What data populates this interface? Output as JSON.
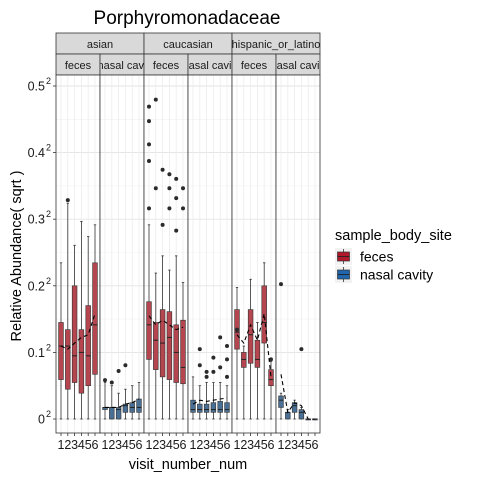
{
  "chart_data": {
    "type": "boxplot",
    "title": "Porphyromonadaceae",
    "xlabel": "visit_number_num",
    "ylabel": "Relative Abundance( sqrt )",
    "y_scale": "sqrt",
    "ylim": [
      0,
      0.27
    ],
    "y_ticks": [
      {
        "value": 0,
        "base": "0",
        "exp": "2"
      },
      {
        "value": 0.01,
        "base": "0.1",
        "exp": "2"
      },
      {
        "value": 0.04,
        "base": "0.2",
        "exp": "2"
      },
      {
        "value": 0.09,
        "base": "0.3",
        "exp": "2"
      },
      {
        "value": 0.16,
        "base": "0.4",
        "exp": "2"
      },
      {
        "value": 0.25,
        "base": "0.5",
        "exp": "2"
      }
    ],
    "x_categories": [
      "1",
      "2",
      "3",
      "4",
      "5",
      "6"
    ],
    "grid": true,
    "legend": {
      "title": "sample_body_site",
      "placement": "right",
      "entries": [
        {
          "label": "feces",
          "color": "#b2182b"
        },
        {
          "label": "nasal cavity",
          "color": "#2166ac"
        }
      ]
    },
    "facet_rows": [
      "asian",
      "caucasian",
      "hispanic_or_latino"
    ],
    "facet_row_labels": [
      "asian",
      "caucasian",
      "hispanic_or_latino"
    ],
    "facet_cols": [
      "feces",
      "nasal cavity"
    ],
    "facet_col_labels": [
      "feces",
      "nasal cavi",
      "feces",
      "asal cavi",
      "feces",
      "asal cavi"
    ],
    "panels": [
      {
        "ethnicity": "asian",
        "site": "feces",
        "boxes": [
          {
            "x": 1,
            "min": 0.0,
            "q1": 0.0035,
            "median": 0.012,
            "q3": 0.021,
            "max": 0.055
          },
          {
            "x": 2,
            "min": 0.0,
            "q1": 0.002,
            "median": 0.012,
            "q3": 0.018,
            "max": 0.105
          },
          {
            "x": 3,
            "min": 0.0,
            "q1": 0.003,
            "median": 0.009,
            "q3": 0.04,
            "max": 0.068
          },
          {
            "x": 4,
            "min": 0.0,
            "q1": 0.0015,
            "median": 0.01,
            "q3": 0.018,
            "max": 0.088
          },
          {
            "x": 5,
            "min": 0.0,
            "q1": 0.0025,
            "median": 0.009,
            "q3": 0.029,
            "max": 0.075
          },
          {
            "x": 6,
            "min": 0.0,
            "q1": 0.0045,
            "median": 0.02,
            "q3": 0.055,
            "max": 0.085
          }
        ],
        "outliers": [
          [
            2,
            0.108
          ]
        ],
        "mean_line": [
          0.012,
          0.011,
          0.013,
          0.015,
          0.016,
          0.025
        ]
      },
      {
        "ethnicity": "asian",
        "site": "nasal cavity",
        "boxes": [
          {
            "x": 1,
            "min": 0.0,
            "q1": 0.0002,
            "median": 0.0003,
            "q3": 0.0003,
            "max": 0.003
          },
          {
            "x": 2,
            "min": 0.0,
            "q1": 0.0,
            "median": 0.0003,
            "q3": 0.0003,
            "max": 0.0025
          },
          {
            "x": 3,
            "min": 0.0,
            "q1": 0.0,
            "median": 0.0002,
            "q3": 0.0003,
            "max": 0.0015
          },
          {
            "x": 4,
            "min": 0.0,
            "q1": 0.0001,
            "median": 0.0004,
            "q3": 0.0005,
            "max": 0.002
          },
          {
            "x": 5,
            "min": 0.0,
            "q1": 0.0001,
            "median": 0.0003,
            "q3": 0.0006,
            "max": 0.0025
          },
          {
            "x": 6,
            "min": 0.0,
            "q1": 0.0001,
            "median": 0.0003,
            "q3": 0.0009,
            "max": 0.003
          }
        ],
        "outliers": [
          [
            1,
            0.0034
          ],
          [
            2,
            0.003
          ],
          [
            3,
            0.0052
          ],
          [
            4,
            0.0065
          ]
        ],
        "mean_line": [
          0.0003,
          0.0003,
          0.0003,
          0.0005,
          0.0006,
          0.0009
        ]
      },
      {
        "ethnicity": "caucasian",
        "site": "feces",
        "boxes": [
          {
            "x": 1,
            "min": 0.0,
            "q1": 0.008,
            "median": 0.02,
            "q3": 0.031,
            "max": 0.085
          },
          {
            "x": 2,
            "min": 0.0,
            "q1": 0.0055,
            "median": 0.014,
            "q3": 0.021,
            "max": 0.048
          },
          {
            "x": 3,
            "min": 0.0,
            "q1": 0.004,
            "median": 0.013,
            "q3": 0.027,
            "max": 0.06
          },
          {
            "x": 4,
            "min": 0.0,
            "q1": 0.0035,
            "median": 0.015,
            "q3": 0.026,
            "max": 0.05
          },
          {
            "x": 5,
            "min": 0.0,
            "q1": 0.003,
            "median": 0.01,
            "q3": 0.02,
            "max": 0.06
          },
          {
            "x": 6,
            "min": 0.0,
            "q1": 0.0028,
            "median": 0.006,
            "q3": 0.022,
            "max": 0.042
          }
        ],
        "outliers": [
          [
            1,
            0.22
          ],
          [
            1,
            0.2
          ],
          [
            1,
            0.17
          ],
          [
            1,
            0.15
          ],
          [
            1,
            0.1
          ],
          [
            2,
            0.23
          ],
          [
            2,
            0.12
          ],
          [
            3,
            0.14
          ],
          [
            3,
            0.085
          ],
          [
            4,
            0.135
          ],
          [
            4,
            0.12
          ],
          [
            4,
            0.1
          ],
          [
            5,
            0.13
          ],
          [
            5,
            0.11
          ],
          [
            5,
            0.08
          ],
          [
            6,
            0.12
          ],
          [
            6,
            0.1
          ]
        ],
        "mean_line": [
          0.024,
          0.02,
          0.022,
          0.02,
          0.018,
          0.019
        ]
      },
      {
        "ethnicity": "caucasian",
        "site": "nasal cavity",
        "boxes": [
          {
            "x": 1,
            "min": 0.0,
            "q1": 0.0001,
            "median": 0.0002,
            "q3": 0.0008,
            "max": 0.004
          },
          {
            "x": 2,
            "min": 0.0,
            "q1": 0.0001,
            "median": 0.0002,
            "q3": 0.0005,
            "max": 0.0025
          },
          {
            "x": 3,
            "min": 0.0,
            "q1": 0.0001,
            "median": 0.0002,
            "q3": 0.0005,
            "max": 0.003
          },
          {
            "x": 4,
            "min": 0.0,
            "q1": 0.0001,
            "median": 0.0002,
            "q3": 0.0006,
            "max": 0.003
          },
          {
            "x": 5,
            "min": 0.0,
            "q1": 0.0001,
            "median": 0.0002,
            "q3": 0.0007,
            "max": 0.003
          },
          {
            "x": 6,
            "min": 0.0,
            "q1": 0.0001,
            "median": 0.0002,
            "q3": 0.0006,
            "max": 0.0025
          }
        ],
        "outliers": [
          [
            2,
            0.011
          ],
          [
            2,
            0.0065
          ],
          [
            3,
            0.004
          ],
          [
            3,
            0.005
          ],
          [
            4,
            0.0085
          ],
          [
            4,
            0.005
          ],
          [
            5,
            0.015
          ],
          [
            5,
            0.006
          ],
          [
            6,
            0.012
          ],
          [
            6,
            0.008
          ],
          [
            6,
            0.004
          ]
        ],
        "mean_line": [
          0.0005,
          0.0008,
          0.0007,
          0.0008,
          0.0009,
          0.001
        ]
      },
      {
        "ethnicity": "hispanic_or_latino",
        "site": "feces",
        "boxes": [
          {
            "x": 1,
            "min": 0.0,
            "q1": 0.011,
            "median": 0.017,
            "q3": 0.027,
            "max": 0.039
          },
          {
            "x": 2,
            "min": 0.0,
            "q1": 0.006,
            "median": 0.008,
            "q3": 0.01,
            "max": 0.012
          },
          {
            "x": 3,
            "min": 0.0,
            "q1": 0.007,
            "median": 0.016,
            "q3": 0.027,
            "max": 0.044
          },
          {
            "x": 4,
            "min": 0.0,
            "q1": 0.006,
            "median": 0.008,
            "q3": 0.014,
            "max": 0.021
          },
          {
            "x": 5,
            "min": 0.0,
            "q1": 0.013,
            "median": 0.021,
            "q3": 0.04,
            "max": 0.055
          },
          {
            "x": 6,
            "min": 0.0,
            "q1": 0.0025,
            "median": 0.0035,
            "q3": 0.0055,
            "max": 0.0075
          }
        ],
        "outliers": [
          [
            1,
            0.018
          ],
          [
            6,
            0.008
          ]
        ],
        "mean_line": [
          0.016,
          0.013,
          0.02,
          0.014,
          0.025,
          0.004
        ]
      },
      {
        "ethnicity": "hispanic_or_latino",
        "site": "nasal cavity",
        "boxes": [
          {
            "x": 1,
            "min": 0.0,
            "q1": 0.0003,
            "median": 0.0008,
            "q3": 0.0012,
            "max": 0.0015
          },
          {
            "x": 2,
            "min": 0.0,
            "q1": 0.0,
            "median": 0.0001,
            "q3": 0.0001,
            "max": 0.0002
          },
          {
            "x": 3,
            "min": 0.0,
            "q1": 0.0001,
            "median": 0.0004,
            "q3": 0.0006,
            "max": 0.0008
          },
          {
            "x": 4,
            "min": 0.0,
            "q1": 0.0,
            "median": 0.0001,
            "q3": 0.0002,
            "max": 0.0003
          },
          {
            "x": 5,
            "min": 0.0,
            "q1": 0.0,
            "median": 0.0,
            "q3": 0.0,
            "max": 0.0
          },
          {
            "x": 6,
            "min": 0.0,
            "q1": 0.0,
            "median": 0.0,
            "q3": 0.0,
            "max": 0.0
          }
        ],
        "outliers": [
          [
            1,
            0.041
          ],
          [
            4,
            0.011
          ]
        ],
        "mean_line": [
          0.0045,
          0.0001,
          0.0006,
          0.0004,
          0.0,
          0.0
        ]
      }
    ]
  }
}
